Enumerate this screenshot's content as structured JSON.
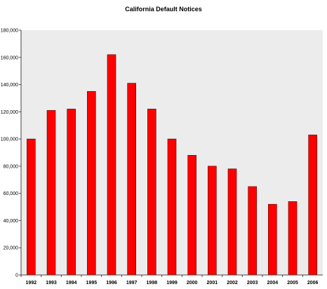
{
  "chart_data": {
    "type": "bar",
    "title": "California Default Notices",
    "xlabel": "",
    "ylabel": "",
    "categories": [
      "1992",
      "1993",
      "1994",
      "1995",
      "1996",
      "1997",
      "1998",
      "1999",
      "2000",
      "2001",
      "2002",
      "2003",
      "2004",
      "2005",
      "2006"
    ],
    "values": [
      100000,
      121000,
      122000,
      135000,
      162000,
      141000,
      122000,
      100000,
      88000,
      80000,
      78000,
      65000,
      52000,
      54000,
      103000
    ],
    "ylim": [
      0,
      180000
    ],
    "yticks": [
      "0",
      "20,000",
      "40,000",
      "60,000",
      "80,000",
      "100,000",
      "120,000",
      "140,000",
      "160,000",
      "180,000"
    ],
    "grid": false,
    "legend": "none",
    "colors": {
      "bar": "#ff0000",
      "bar_edge": "#5a0000",
      "plot_background": "#ececec",
      "axis": "#444444"
    }
  }
}
